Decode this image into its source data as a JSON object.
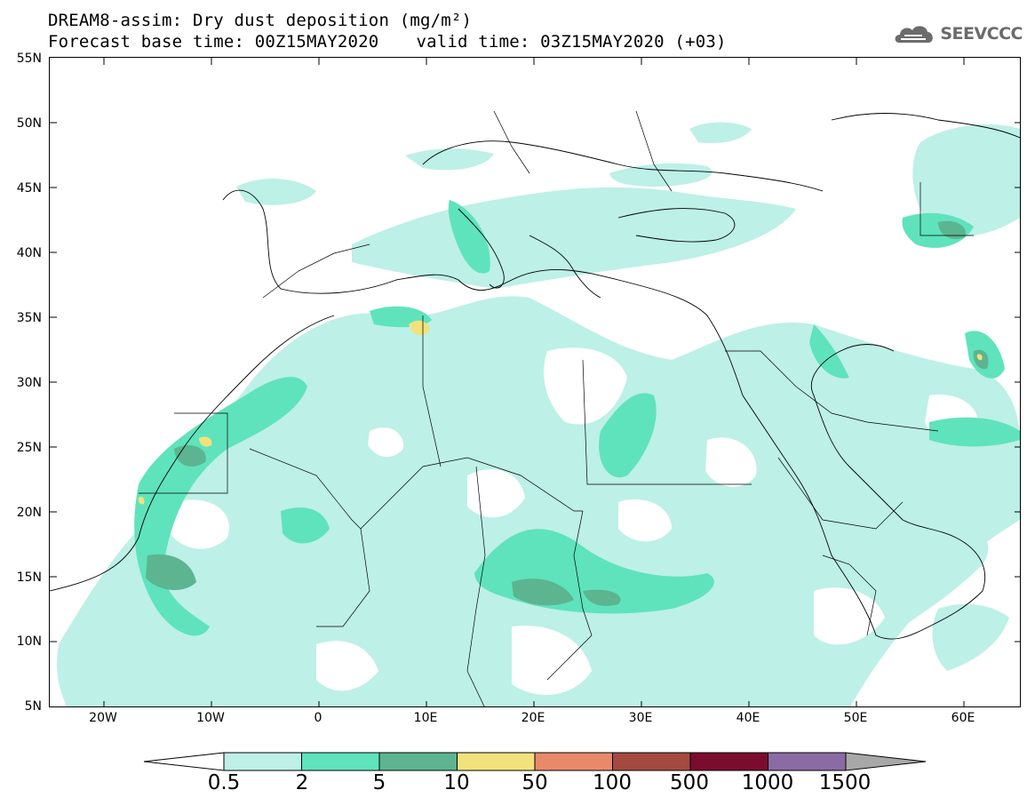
{
  "title": {
    "line1": "DREAM8-assim: Dry dust deposition (mg/m²)",
    "forecast": "Forecast base time: 00Z15MAY2020",
    "valid": "valid time: 03Z15MAY2020 (+03)"
  },
  "logo": {
    "icon": "cloud-logo-icon",
    "text": "SEEVCCC"
  },
  "axes": {
    "lat_labels": [
      "55N",
      "50N",
      "45N",
      "40N",
      "35N",
      "30N",
      "25N",
      "20N",
      "15N",
      "10N",
      "5N"
    ],
    "lon_labels": [
      "20W",
      "10W",
      "0",
      "10E",
      "20E",
      "30E",
      "40E",
      "50E",
      "60E"
    ]
  },
  "legend": {
    "labels": [
      "0.5",
      "2",
      "5",
      "10",
      "50",
      "100",
      "500",
      "1000",
      "1500"
    ],
    "colors": [
      "#bdf0e7",
      "#5fe3bc",
      "#5cb590",
      "#f2e27b",
      "#e88a6a",
      "#a44a3f",
      "#7a0d2d",
      "#8b6ba3",
      "#a8a8a8"
    ]
  },
  "colors": {
    "level_0_5": "#bdf0e7",
    "level_2": "#5fe3bc",
    "level_5": "#5cb590",
    "level_10": "#f2e27b"
  }
}
